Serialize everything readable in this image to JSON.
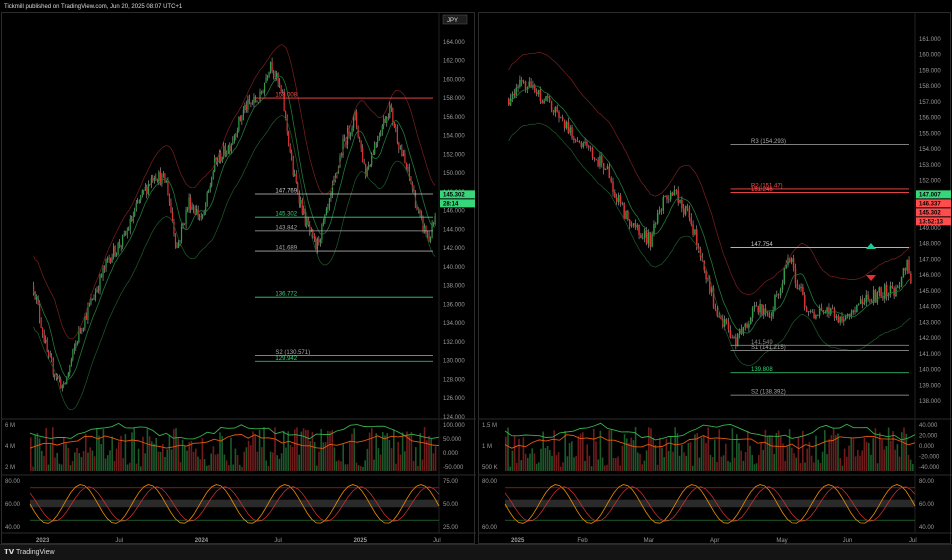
{
  "header": {
    "publisher_line": "Tickmill published on TradingView.com, Jun 20, 2025 08:07 UTC+1"
  },
  "footer": {
    "brand": "TradingView"
  },
  "colors": {
    "up": "#2f9e44",
    "down": "#e03131",
    "accent_red": "#ff4d4d",
    "accent_green": "#37d67a",
    "orange": "#f59f00"
  },
  "chart_data": [
    {
      "type": "candlestick",
      "currency_badge": "JPY",
      "price_axis": {
        "ylim": [
          124,
          166
        ],
        "ticks": [
          "164.000",
          "162.000",
          "160.000",
          "158.000",
          "156.000",
          "154.000",
          "152.000",
          "150.000",
          "148.000",
          "146.000",
          "144.000",
          "142.000",
          "140.000",
          "138.000",
          "136.000",
          "134.000",
          "132.000",
          "130.000",
          "128.000",
          "126.000",
          "124.000"
        ]
      },
      "time_axis": {
        "labels": [
          "2023",
          "Jul",
          "2024",
          "Jul",
          "2025",
          "Jul"
        ]
      },
      "path": [
        [
          0,
          138
        ],
        [
          10,
          130
        ],
        [
          20,
          127
        ],
        [
          30,
          133
        ],
        [
          40,
          137
        ],
        [
          50,
          141
        ],
        [
          60,
          143
        ],
        [
          70,
          147
        ],
        [
          80,
          150
        ],
        [
          88,
          149
        ],
        [
          95,
          142
        ],
        [
          103,
          147
        ],
        [
          112,
          145
        ],
        [
          120,
          151
        ],
        [
          130,
          153
        ],
        [
          140,
          157
        ],
        [
          150,
          158
        ],
        [
          157,
          162
        ],
        [
          165,
          158
        ],
        [
          172,
          150
        ],
        [
          180,
          145
        ],
        [
          187,
          142
        ],
        [
          195,
          146
        ],
        [
          205,
          153
        ],
        [
          213,
          156
        ],
        [
          220,
          150
        ],
        [
          228,
          154
        ],
        [
          236,
          157
        ],
        [
          244,
          152
        ],
        [
          250,
          149
        ],
        [
          256,
          145
        ],
        [
          262,
          143
        ],
        [
          266,
          145
        ]
      ],
      "levels": [
        {
          "label": "158.008",
          "price": 158.0,
          "color": "#ff4d4d"
        },
        {
          "label": "147.769",
          "price": 147.77,
          "color": "#cccccc"
        },
        {
          "label": "145.302",
          "price": 145.302,
          "color": "#37d67a",
          "badge": true
        },
        {
          "label": "143.842",
          "price": 143.84,
          "color": "#aaaaaa"
        },
        {
          "label": "141.689",
          "price": 141.69,
          "color": "#aaaaaa"
        },
        {
          "label": "136.772",
          "price": 136.77,
          "color": "#37d67a"
        },
        {
          "label": "S2 (130.571)",
          "price": 130.57,
          "color": "#aaaaaa"
        },
        {
          "label": "129.942",
          "price": 129.94,
          "color": "#37d67a"
        }
      ],
      "badges": [
        {
          "text": "145.302",
          "color": "#37d67a"
        },
        {
          "text": "28:14",
          "color": "#37d67a"
        }
      ],
      "volume_pane": {
        "left_ticks": [
          "6 M",
          "4 M",
          "2 M"
        ],
        "right_ticks": [
          "100.000",
          "50.000",
          "0.000",
          "-50.000"
        ]
      },
      "osc_pane": {
        "left_ticks": [
          "80.00",
          "60.00",
          "40.00"
        ],
        "right_ticks": [
          "75.00",
          "50.00",
          "25.00"
        ]
      }
    },
    {
      "type": "candlestick",
      "price_axis": {
        "ylim": [
          137,
          162
        ],
        "ticks": [
          "161.000",
          "160.000",
          "159.000",
          "158.000",
          "157.000",
          "156.000",
          "155.000",
          "154.000",
          "153.000",
          "152.000",
          "151.000",
          "150.000",
          "149.000",
          "148.000",
          "147.000",
          "146.000",
          "145.000",
          "144.000",
          "143.000",
          "142.000",
          "141.000",
          "140.000",
          "139.000",
          "138.000"
        ]
      },
      "time_axis": {
        "labels": [
          "2025",
          "Feb",
          "Mar",
          "Apr",
          "May",
          "Jun",
          "Jul"
        ]
      },
      "path": [
        [
          0,
          157.2
        ],
        [
          8,
          158.3
        ],
        [
          15,
          157.5
        ],
        [
          22,
          156.8
        ],
        [
          30,
          155.6
        ],
        [
          38,
          154.4
        ],
        [
          45,
          153.7
        ],
        [
          52,
          152.8
        ],
        [
          58,
          150.9
        ],
        [
          64,
          149.5
        ],
        [
          70,
          148.9
        ],
        [
          76,
          148.2
        ],
        [
          83,
          150.6
        ],
        [
          90,
          151.1
        ],
        [
          97,
          149.6
        ],
        [
          104,
          147.0
        ],
        [
          110,
          144.3
        ],
        [
          116,
          142.9
        ],
        [
          122,
          141.8
        ],
        [
          128,
          143.1
        ],
        [
          134,
          144.0
        ],
        [
          140,
          143.5
        ],
        [
          146,
          145.2
        ],
        [
          150,
          147.4
        ],
        [
          156,
          145.1
        ],
        [
          162,
          143.5
        ],
        [
          170,
          144.0
        ],
        [
          178,
          143.2
        ],
        [
          186,
          144.0
        ],
        [
          194,
          144.5
        ],
        [
          202,
          145.0
        ],
        [
          208,
          144.8
        ],
        [
          214,
          146.8
        ],
        [
          216,
          145.3
        ]
      ],
      "levels": [
        {
          "label": "R3 (154.293)",
          "price": 154.29,
          "color": "#aaaaaa"
        },
        {
          "label": "R2 (151.47)",
          "price": 151.47,
          "color": "#ff4d4d"
        },
        {
          "label": "151.246",
          "price": 151.25,
          "color": "#ff4d4d"
        },
        {
          "label": "147.754",
          "price": 147.75,
          "color": "#cccccc"
        },
        {
          "label": "S1 (141.215)",
          "price": 141.22,
          "color": "#aaaaaa"
        },
        {
          "label": "141.549",
          "price": 141.55,
          "color": "#888888"
        },
        {
          "label": "139.808",
          "price": 139.81,
          "color": "#37d67a"
        },
        {
          "label": "S2 (138.392)",
          "price": 138.39,
          "color": "#aaaaaa"
        }
      ],
      "badges": [
        {
          "text": "147.007",
          "color": "#37d67a"
        },
        {
          "text": "146.337",
          "color": "#ff4d4d"
        },
        {
          "text": "145.302",
          "color": "#ff4d4d"
        },
        {
          "text": "13:52:13",
          "color": "#ff4d4d"
        }
      ],
      "volume_pane": {
        "left_ticks": [
          "1.5 M",
          "1 M",
          "500 K"
        ],
        "right_ticks": [
          "40.000",
          "20.000",
          "0.000",
          "-20.000",
          "-40.000"
        ]
      },
      "osc_pane": {
        "left_ticks": [
          "80.00",
          "60.00"
        ],
        "right_ticks": [
          "80.00",
          "60.00",
          "40.00"
        ]
      }
    }
  ]
}
